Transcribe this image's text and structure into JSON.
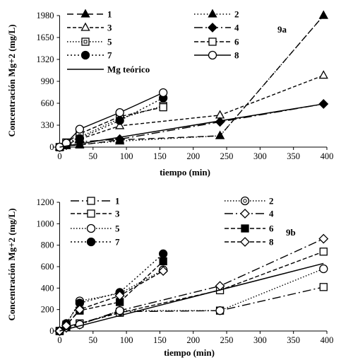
{
  "chart_data": [
    {
      "type": "line",
      "panel_label": "9a",
      "ylabel": "Concentración Mg+2 (mg/L)",
      "xlabel": "tiempo (min)",
      "xlim": [
        -10,
        400
      ],
      "ylim": [
        0,
        1980
      ],
      "xticks": [
        0,
        50,
        100,
        150,
        200,
        250,
        300,
        350,
        400
      ],
      "yticks": [
        0,
        330,
        660,
        990,
        1320,
        1650,
        1980
      ],
      "legend_position": "top",
      "series": [
        {
          "name": "1",
          "color": "#000000",
          "dash": "9,5",
          "marker": "triangle",
          "fill": true,
          "x": [
            0,
            10,
            30,
            90,
            240,
            395
          ],
          "y": [
            0,
            20,
            30,
            110,
            170,
            1980
          ]
        },
        {
          "name": "2",
          "color": "#000000",
          "dash": "1.5,3",
          "marker": "triangle",
          "fill": true,
          "x": [
            0,
            10,
            30,
            90,
            240,
            395
          ],
          "y": [
            0,
            20,
            40,
            90,
            170,
            1980
          ]
        },
        {
          "name": "3",
          "color": "#000000",
          "dash": "5,3",
          "marker": "triangle",
          "fill": false,
          "x": [
            0,
            10,
            30,
            90,
            240,
            395
          ],
          "y": [
            0,
            40,
            120,
            320,
            480,
            1080
          ]
        },
        {
          "name": "4",
          "color": "#000000",
          "dash": "12,4,2,4",
          "marker": "diamond",
          "fill": true,
          "x": [
            0,
            10,
            30,
            90,
            240,
            395
          ],
          "y": [
            0,
            30,
            80,
            120,
            380,
            650
          ]
        },
        {
          "name": "5",
          "color": "#000000",
          "dash": "1.5,2.5",
          "marker": "square-dot",
          "fill": false,
          "x": [
            0,
            10,
            30,
            90,
            155
          ],
          "y": [
            0,
            60,
            150,
            430,
            620
          ]
        },
        {
          "name": "6",
          "color": "#000000",
          "dash": "6,3",
          "marker": "square",
          "fill": false,
          "x": [
            0,
            10,
            30,
            90,
            155
          ],
          "y": [
            0,
            70,
            200,
            460,
            600
          ]
        },
        {
          "name": "7",
          "color": "#000000",
          "dash": "2,3",
          "marker": "circle",
          "fill": true,
          "x": [
            0,
            10,
            30,
            90,
            155
          ],
          "y": [
            0,
            40,
            130,
            400,
            740
          ]
        },
        {
          "name": "8",
          "color": "#000000",
          "dash": "",
          "marker": "circle",
          "fill": false,
          "x": [
            0,
            10,
            30,
            90,
            155
          ],
          "y": [
            0,
            60,
            270,
            520,
            820
          ]
        },
        {
          "name": "Mg teórico",
          "color": "#000000",
          "dash": "",
          "marker": "none",
          "fill": false,
          "x": [
            0,
            395
          ],
          "y": [
            0,
            650
          ]
        }
      ]
    },
    {
      "type": "line",
      "panel_label": "9b",
      "ylabel": "Concentración Mg+2 (mg/L)",
      "xlabel": "tiempo (min)",
      "xlim": [
        -10,
        400
      ],
      "ylim": [
        0,
        1200
      ],
      "xticks": [
        0,
        50,
        100,
        150,
        200,
        250,
        300,
        350,
        400
      ],
      "yticks": [
        0,
        200,
        400,
        600,
        800,
        1000,
        1200
      ],
      "legend_position": "top",
      "series": [
        {
          "name": "1",
          "color": "#000000",
          "dash": "12,4,2,4",
          "marker": "square",
          "fill": false,
          "x": [
            0,
            10,
            30,
            90,
            240,
            395
          ],
          "y": [
            0,
            40,
            70,
            180,
            190,
            410
          ]
        },
        {
          "name": "2",
          "color": "#000000",
          "dash": "1.5,2.5",
          "marker": "circle-dot",
          "fill": false,
          "x": [
            0,
            10,
            30,
            90,
            155
          ],
          "y": [
            0,
            60,
            280,
            350,
            570
          ]
        },
        {
          "name": "3",
          "color": "#000000",
          "dash": "6,3",
          "marker": "square",
          "fill": false,
          "x": [
            0,
            10,
            30,
            90,
            240,
            395
          ],
          "y": [
            0,
            40,
            70,
            170,
            380,
            740
          ]
        },
        {
          "name": "4",
          "color": "#000000",
          "dash": "12,4,2,4",
          "marker": "diamond",
          "fill": false,
          "x": [
            0,
            10,
            30,
            90,
            240,
            395
          ],
          "y": [
            0,
            30,
            60,
            190,
            420,
            860
          ]
        },
        {
          "name": "5",
          "color": "#000000",
          "dash": "1.5,2.5",
          "marker": "circle",
          "fill": false,
          "x": [
            0,
            10,
            30,
            90,
            240,
            395
          ],
          "y": [
            0,
            50,
            60,
            190,
            190,
            580
          ]
        },
        {
          "name": "6",
          "color": "#000000",
          "dash": "6,3",
          "marker": "square",
          "fill": true,
          "x": [
            0,
            10,
            30,
            90,
            155
          ],
          "y": [
            0,
            60,
            190,
            270,
            650
          ]
        },
        {
          "name": "7",
          "color": "#000000",
          "dash": "2,3",
          "marker": "circle",
          "fill": true,
          "x": [
            0,
            10,
            30,
            90,
            155
          ],
          "y": [
            0,
            70,
            260,
            360,
            720
          ]
        },
        {
          "name": "8",
          "color": "#000000",
          "dash": "6,3",
          "marker": "diamond",
          "fill": false,
          "x": [
            0,
            10,
            30,
            90,
            155
          ],
          "y": [
            0,
            50,
            200,
            330,
            560
          ]
        },
        {
          "name": "",
          "color": "#000000",
          "dash": "",
          "marker": "none",
          "fill": false,
          "x": [
            0,
            395
          ],
          "y": [
            0,
            630
          ]
        }
      ]
    }
  ]
}
